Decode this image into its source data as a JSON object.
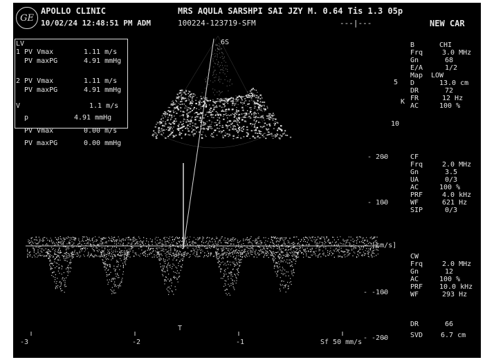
{
  "header": {
    "clinic": "APOLLO CLINIC",
    "patient": "MRS AQULA SARSHPI SAI JZY M. 0.64 Tis 1.3 05p",
    "datetime": "10/02/24 12:48:51 PM ADM",
    "study_id": "100224-123719-SFM",
    "dashes": "---|---",
    "preset": "NEW CAR"
  },
  "logo": "GE",
  "measurements": {
    "title": "LV",
    "m1_label": "1 PV Vmax",
    "m1_value": "1.11 m/s",
    "m2_label": "PV maxPG",
    "m2_value": "4.91 mmHg",
    "m3_label": "2 PV Vmax",
    "m3_value": "1.11 m/s",
    "m4_label": "PV maxPG",
    "m4_value": "4.91 mmHg",
    "m5_label": "V",
    "m5_value": "1.1 m/s",
    "m6_label": "p",
    "m6_value": "4.91 mmHg",
    "m7_label": "PV Vmax",
    "m7_value": "0.00 m/s",
    "m8_label": "PV maxPG",
    "m8_value": "0.00 mmHg"
  },
  "probe_marker": "6S",
  "b_mode": {
    "title": "B",
    "mode": "CHI",
    "frq_label": "Frq",
    "frq_value": "3.0 MHz",
    "gn_label": "Gn",
    "gn_value": "68",
    "ea_label": "E/A",
    "ea_value": "1/2",
    "map_label": "Map",
    "map_value": "LOW",
    "d_label": "D",
    "d_value": "13.0 cm",
    "dr_label": "DR",
    "dr_value": "72",
    "fr_label": "FR",
    "fr_value": "12 Hz",
    "ac_label": "AC",
    "ac_value": "100 %",
    "depth_5": "5",
    "depth_10": "10",
    "k_marker": "K"
  },
  "cf": {
    "title": "CF",
    "frq_label": "Frq",
    "frq_value": "2.0 MHz",
    "gn_label": "Gn",
    "gn_value": "3.5",
    "ua_label": "UA",
    "ua_value": "0/3",
    "ac_label": "AC",
    "ac_value": "100 %",
    "prf_label": "PRF",
    "prf_value": "4.0 kHz",
    "wf_label": "WF",
    "wf_value": "621 Hz",
    "sip_label": "SIP",
    "sip_value": "0/3"
  },
  "cw": {
    "title": "CW",
    "frq_label": "Frq",
    "frq_value": "2.0 MHz",
    "gn_label": "Gn",
    "gn_value": "12",
    "ac_label": "AC",
    "ac_value": "100 %",
    "prf_label": "PRF",
    "prf_value": "10.0 kHz",
    "wf_label": "WF",
    "wf_value": "293 Hz",
    "dr_label": "DR",
    "dr_value": "66",
    "svd_label": "SVD",
    "svd_value": "6.7 cm"
  },
  "velocity_scale": {
    "t200": "- 200",
    "t100": "- 100",
    "zero": "- [cm/s]",
    "m100": "- -100",
    "m200": "- -200"
  },
  "time_axis": {
    "t1": "-3",
    "t2": "-2",
    "t3": "T",
    "t4": "-1"
  },
  "sweep": "Sf 50 mm/s"
}
